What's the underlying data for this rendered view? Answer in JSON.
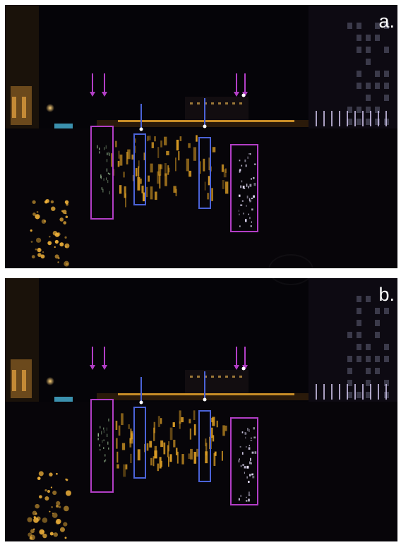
{
  "figure": {
    "panels": [
      {
        "id": "a",
        "label": "a."
      },
      {
        "id": "b",
        "label": "b."
      }
    ]
  },
  "annotations": {
    "magenta_color": "#b23ec6",
    "blue_color": "#4b63d8",
    "arrow_color": "#b23ec6",
    "blue_marker_color": "#4b63d8",
    "box_count_per_panel": 4,
    "arrow_count_per_panel": 4
  },
  "scene": {
    "sky_color": "#050408",
    "water_reflection_color": "#e3a326",
    "building_light_color": "#f2c77a",
    "neon_color": "#d04bd6"
  }
}
